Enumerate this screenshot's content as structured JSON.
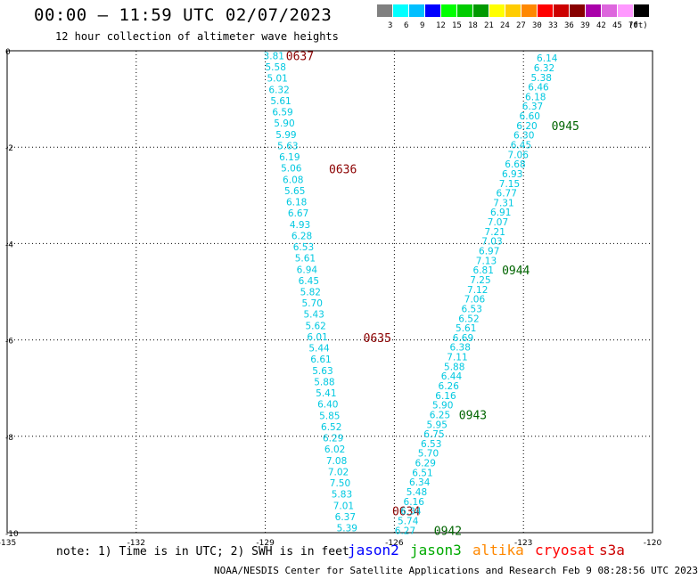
{
  "title": "00:00 – 11:59 UTC 02/07/2023",
  "subtitle": "12 hour collection of altimeter wave heights",
  "legend": {
    "unit": "(ft)",
    "bins": [
      {
        "label": "3",
        "color": "#808080"
      },
      {
        "label": "6",
        "color": "#00ffff"
      },
      {
        "label": "9",
        "color": "#00bfff"
      },
      {
        "label": "12",
        "color": "#0000ff"
      },
      {
        "label": "15",
        "color": "#00ff00"
      },
      {
        "label": "18",
        "color": "#00cc00"
      },
      {
        "label": "21",
        "color": "#009900"
      },
      {
        "label": "24",
        "color": "#ffff00"
      },
      {
        "label": "27",
        "color": "#ffcc00"
      },
      {
        "label": "30",
        "color": "#ff8800"
      },
      {
        "label": "33",
        "color": "#ff0000"
      },
      {
        "label": "36",
        "color": "#cc0000"
      },
      {
        "label": "39",
        "color": "#880000"
      },
      {
        "label": "42",
        "color": "#aa00aa"
      },
      {
        "label": "45",
        "color": "#dd66dd"
      },
      {
        "label": "70",
        "color": "#ff99ff"
      },
      {
        "label": "",
        "color": "#000000"
      }
    ]
  },
  "axes": {
    "lon_ticks": [
      "-135",
      "-132",
      "-129",
      "-126",
      "-123",
      "-120"
    ],
    "lat_ticks": [
      "0",
      "-2",
      "-4",
      "-6",
      "-8",
      "-10"
    ]
  },
  "tracks": [
    {
      "satellite": "jason2",
      "color": "#00c8e0",
      "time_color": "#8b0000",
      "times": [
        {
          "label": "0637",
          "lon": -128.52,
          "lat": -0.1
        },
        {
          "label": "0636",
          "lon": -127.52,
          "lat": -2.45
        },
        {
          "label": "0635",
          "lon": -126.72,
          "lat": -5.95
        },
        {
          "label": "0634",
          "lon": -126.05,
          "lat": -9.55
        }
      ],
      "start": {
        "lon": -128.8,
        "lat": -0.1
      },
      "end": {
        "lon": -127.1,
        "lat": -9.9
      },
      "values": [
        "3.81",
        "5.58",
        "5.01",
        "6.32",
        "5.61",
        "6.59",
        "5.90",
        "5.99",
        "5.63",
        "6.19",
        "5.06",
        "6.08",
        "5.65",
        "6.18",
        "6.67",
        "4.93",
        "6.28",
        "6.53",
        "5.61",
        "6.94",
        "6.45",
        "5.82",
        "5.70",
        "5.43",
        "5.62",
        "6.01",
        "5.44",
        "6.61",
        "5.63",
        "5.88",
        "5.41",
        "6.40",
        "5.85",
        "6.52",
        "6.29",
        "6.02",
        "7.08",
        "7.02",
        "7.50",
        "5.83",
        "7.01",
        "6.37",
        "5.39"
      ]
    },
    {
      "satellite": "jason3",
      "color": "#00c8e0",
      "time_color": "#006400",
      "times": [
        {
          "label": "0945",
          "lon": -122.35,
          "lat": -1.55
        },
        {
          "label": "0944",
          "lon": -123.5,
          "lat": -4.55
        },
        {
          "label": "0943",
          "lon": -124.5,
          "lat": -7.55
        },
        {
          "label": "0942",
          "lon": -125.08,
          "lat": -9.95
        }
      ],
      "start": {
        "lon": -122.45,
        "lat": -0.15
      },
      "end": {
        "lon": -125.75,
        "lat": -9.95
      },
      "values": [
        "6.14",
        "6.32",
        "5.38",
        "6.46",
        "6.18",
        "6.37",
        "6.60",
        "6.20",
        "6.30",
        "6.45",
        "7.06",
        "6.68",
        "6.93",
        "7.15",
        "6.77",
        "7.31",
        "6.91",
        "7.07",
        "7.21",
        "7.03",
        "6.97",
        "7.13",
        "6.81",
        "7.25",
        "7.12",
        "7.06",
        "6.53",
        "6.52",
        "5.61",
        "6.69",
        "6.38",
        "7.11",
        "5.88",
        "6.44",
        "6.26",
        "6.16",
        "5.90",
        "6.25",
        "5.95",
        "6.75",
        "6.53",
        "5.70",
        "6.29",
        "6.51",
        "6.34",
        "5.48",
        "6.16",
        "6.34",
        "5.74",
        "6.27"
      ]
    }
  ],
  "footer": {
    "note": "note: 1) Time is in UTC; 2) SWH is in feet",
    "satellites": [
      {
        "name": "jason2",
        "color": "#0000ff"
      },
      {
        "name": "jason3",
        "color": "#00aa00"
      },
      {
        "name": "altika",
        "color": "#ff8800"
      },
      {
        "name": "cryosat",
        "color": "#ff0000"
      },
      {
        "name": "s3a",
        "color": "#cc0000"
      }
    ],
    "credit": "NOAA/NESDIS Center for Satellite Applications and Research    Feb  9 08:28:56 UTC 2023"
  }
}
